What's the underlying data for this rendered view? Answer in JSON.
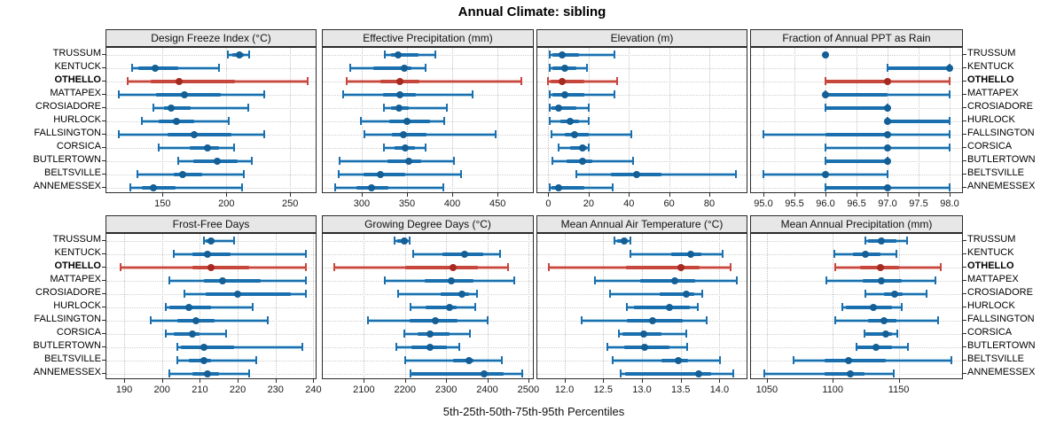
{
  "title": "Annual Climate: sibling",
  "caption": "5th-25th-50th-75th-95th Percentiles",
  "sites": [
    "TRUSSUM",
    "KENTUCK",
    "OTHELLO",
    "MATTAPEX",
    "CROSIADORE",
    "HURLOCK",
    "FALLSINGTON",
    "CORSICA",
    "BUTLERTOWN",
    "BELTSVILLE",
    "ANNEMESSEX"
  ],
  "highlight_site": "OTHELLO",
  "colors": {
    "blue_line": "#1a6fae",
    "blue_band": "rgba(106,174,214,0.55)",
    "blue_dot": "#135f96",
    "red_line": "#c8473d",
    "red_band": "rgba(200,71,61,0.40)",
    "red_dot": "#a52a21",
    "header_bg": "#e7e7e7",
    "grid": "#c3c3c3"
  },
  "chart_data": {
    "type": "dotplot-intervals",
    "percentile_labels": [
      "5th",
      "25th",
      "50th",
      "75th",
      "95th"
    ],
    "legend_note": "each row: 5th-95th whisker with caps, 25th-75th thick band, dot at median",
    "grid": "dotted",
    "panels": [
      {
        "title": "Design Freeze Index (°C)",
        "row": 0,
        "col": 0,
        "domain": [
          106,
          270
        ],
        "ticks": [
          150,
          200,
          250
        ],
        "tick_labels": [
          "150",
          "200",
          "250"
        ],
        "values": [
          [
            201,
            205,
            210,
            214,
            218
          ],
          [
            126,
            131,
            144,
            162,
            194
          ],
          [
            123,
            141,
            163,
            207,
            264
          ],
          [
            116,
            145,
            167,
            196,
            230
          ],
          [
            143,
            151,
            157,
            172,
            217
          ],
          [
            134,
            147,
            161,
            175,
            202
          ],
          [
            116,
            154,
            175,
            204,
            230
          ],
          [
            147,
            171,
            185,
            194,
            206
          ],
          [
            162,
            174,
            193,
            209,
            220
          ],
          [
            130,
            159,
            166,
            181,
            214
          ],
          [
            125,
            134,
            143,
            160,
            212
          ]
        ]
      },
      {
        "title": "Effective Precipitation (mm)",
        "row": 0,
        "col": 1,
        "domain": [
          257,
          489
        ],
        "ticks": [
          300,
          350,
          400,
          450
        ],
        "tick_labels": [
          "300",
          "350",
          "400",
          "450"
        ],
        "values": [
          [
            326,
            332,
            340,
            363,
            381
          ],
          [
            287,
            313,
            347,
            355,
            371
          ],
          [
            283,
            321,
            342,
            364,
            476
          ],
          [
            280,
            324,
            342,
            360,
            422
          ],
          [
            325,
            332,
            341,
            352,
            394
          ],
          [
            299,
            330,
            350,
            375,
            391
          ],
          [
            303,
            333,
            346,
            372,
            448
          ],
          [
            325,
            336,
            348,
            359,
            371
          ],
          [
            276,
            328,
            352,
            366,
            402
          ],
          [
            275,
            302,
            321,
            348,
            410
          ],
          [
            271,
            294,
            311,
            329,
            390
          ]
        ]
      },
      {
        "title": "Elevation (m)",
        "row": 0,
        "col": 2,
        "domain": [
          -5.5,
          98.5
        ],
        "ticks": [
          0,
          20,
          40,
          60,
          80
        ],
        "tick_labels": [
          "0",
          "20",
          "40",
          "60",
          "80"
        ],
        "values": [
          [
            0.5,
            2,
            7,
            15,
            33
          ],
          [
            0.5,
            2,
            8,
            14,
            19
          ],
          [
            0,
            1,
            7,
            18,
            34
          ],
          [
            0.5,
            2,
            8,
            18,
            33
          ],
          [
            0.5,
            1.5,
            5,
            14,
            20
          ],
          [
            0.5,
            6,
            11,
            15,
            20
          ],
          [
            1.5,
            8,
            13,
            20,
            41
          ],
          [
            5,
            11,
            17,
            19,
            20
          ],
          [
            2,
            9,
            17,
            22,
            42
          ],
          [
            14,
            31,
            44,
            56,
            93
          ],
          [
            0.5,
            1.5,
            5,
            18,
            32
          ]
        ]
      },
      {
        "title": "Fraction of Annual PPT as Rain",
        "row": 0,
        "col": 3,
        "domain": [
          94.8,
          98.2
        ],
        "ticks": [
          95.0,
          95.5,
          96.0,
          96.5,
          97.0,
          97.5,
          98.0
        ],
        "tick_labels": [
          "95.0",
          "95.5",
          "96.0",
          "96.5",
          "97.0",
          "97.5",
          "98.0"
        ],
        "values": [
          [
            96,
            96,
            96,
            96,
            96
          ],
          [
            97,
            97,
            98,
            98,
            98
          ],
          [
            96,
            96,
            97,
            97,
            98
          ],
          [
            96,
            96,
            96,
            97,
            98
          ],
          [
            96,
            96,
            97,
            97,
            97
          ],
          [
            97,
            97,
            97,
            98,
            98
          ],
          [
            95,
            96,
            97,
            97,
            98
          ],
          [
            96,
            97,
            97,
            97,
            98
          ],
          [
            96,
            96,
            97,
            97,
            97
          ],
          [
            95,
            96,
            96,
            96,
            97
          ],
          [
            96,
            96,
            97,
            97,
            98
          ]
        ]
      },
      {
        "title": "Frost-Free Days",
        "row": 1,
        "col": 0,
        "domain": [
          185.3,
          240.6
        ],
        "ticks": [
          190,
          200,
          210,
          220,
          230,
          240
        ],
        "tick_labels": [
          "190",
          "200",
          "210",
          "220",
          "230",
          "240"
        ],
        "values": [
          [
            211,
            211.5,
            213,
            214,
            219
          ],
          [
            203,
            208,
            212,
            218,
            238
          ],
          [
            189,
            208,
            213,
            223,
            238
          ],
          [
            202,
            211,
            216,
            226,
            238
          ],
          [
            206,
            211.5,
            220,
            234,
            238
          ],
          [
            201,
            202,
            207,
            213,
            224
          ],
          [
            197,
            204,
            209,
            214,
            228
          ],
          [
            201,
            203,
            208,
            210,
            217
          ],
          [
            204,
            205,
            211,
            219,
            237
          ],
          [
            204,
            207,
            211,
            213,
            225
          ],
          [
            202,
            208,
            212,
            215,
            223
          ]
        ]
      },
      {
        "title": "Growing Degree Days (°C)",
        "row": 1,
        "col": 1,
        "domain": [
          2000,
          2511
        ],
        "ticks": [
          2100,
          2200,
          2300,
          2400,
          2500
        ],
        "tick_labels": [
          "2100",
          "2200",
          "2300",
          "2400",
          "2500"
        ],
        "values": [
          [
            2175,
            2181,
            2198,
            2208,
            2212
          ],
          [
            2221,
            2290,
            2344,
            2390,
            2431
          ],
          [
            2029,
            2201,
            2317,
            2378,
            2451
          ],
          [
            2150,
            2248,
            2313,
            2366,
            2466
          ],
          [
            2184,
            2287,
            2339,
            2355,
            2376
          ],
          [
            2214,
            2250,
            2309,
            2325,
            2371
          ],
          [
            2111,
            2212,
            2273,
            2328,
            2400
          ],
          [
            2198,
            2230,
            2261,
            2309,
            2357
          ],
          [
            2180,
            2216,
            2260,
            2301,
            2333
          ],
          [
            2201,
            2316,
            2355,
            2366,
            2435
          ],
          [
            2214,
            2216,
            2392,
            2440,
            2486
          ]
        ]
      },
      {
        "title": "Mean Annual Air Temperature (°C)",
        "row": 1,
        "col": 2,
        "domain": [
          11.65,
          14.35
        ],
        "ticks": [
          12.0,
          12.5,
          13.0,
          13.5,
          14.0
        ],
        "tick_labels": [
          "12.0",
          "12.5",
          "13.0",
          "13.5",
          "14.0"
        ],
        "values": [
          [
            12.65,
            12.68,
            12.77,
            12.82,
            12.85
          ],
          [
            12.85,
            13.38,
            13.63,
            13.77,
            14.04
          ],
          [
            11.8,
            12.79,
            13.5,
            13.74,
            14.14
          ],
          [
            12.39,
            12.98,
            13.42,
            13.69,
            14.22
          ],
          [
            12.59,
            13.23,
            13.57,
            13.68,
            13.78
          ],
          [
            12.81,
            12.9,
            13.36,
            13.62,
            13.72
          ],
          [
            12.22,
            12.81,
            13.14,
            13.53,
            13.84
          ],
          [
            12.7,
            12.75,
            13.02,
            13.25,
            13.57
          ],
          [
            12.55,
            12.77,
            13.04,
            13.36,
            13.58
          ],
          [
            12.62,
            13.25,
            13.47,
            13.6,
            14.01
          ],
          [
            12.72,
            12.78,
            13.73,
            13.89,
            14.18
          ]
        ]
      },
      {
        "title": "Mean Annual Precipitation (mm)",
        "row": 1,
        "col": 3,
        "domain": [
          1038,
          1198
        ],
        "ticks": [
          1050,
          1100,
          1150
        ],
        "tick_labels": [
          "1050",
          "1100",
          "1150"
        ],
        "values": [
          [
            1125,
            1127,
            1137,
            1148,
            1156
          ],
          [
            1101,
            1115,
            1125,
            1136,
            1148
          ],
          [
            1102,
            1121,
            1136,
            1150,
            1182
          ],
          [
            1095,
            1123,
            1137,
            1152,
            1178
          ],
          [
            1125,
            1139,
            1147,
            1153,
            1171
          ],
          [
            1107,
            1110,
            1131,
            1145,
            1152
          ],
          [
            1102,
            1127,
            1139,
            1148,
            1180
          ],
          [
            1124,
            1125,
            1140,
            1145,
            1149
          ],
          [
            1118,
            1119,
            1133,
            1145,
            1157
          ],
          [
            1070,
            1094,
            1112,
            1140,
            1190
          ],
          [
            1048,
            1094,
            1113,
            1124,
            1146
          ]
        ]
      }
    ]
  }
}
